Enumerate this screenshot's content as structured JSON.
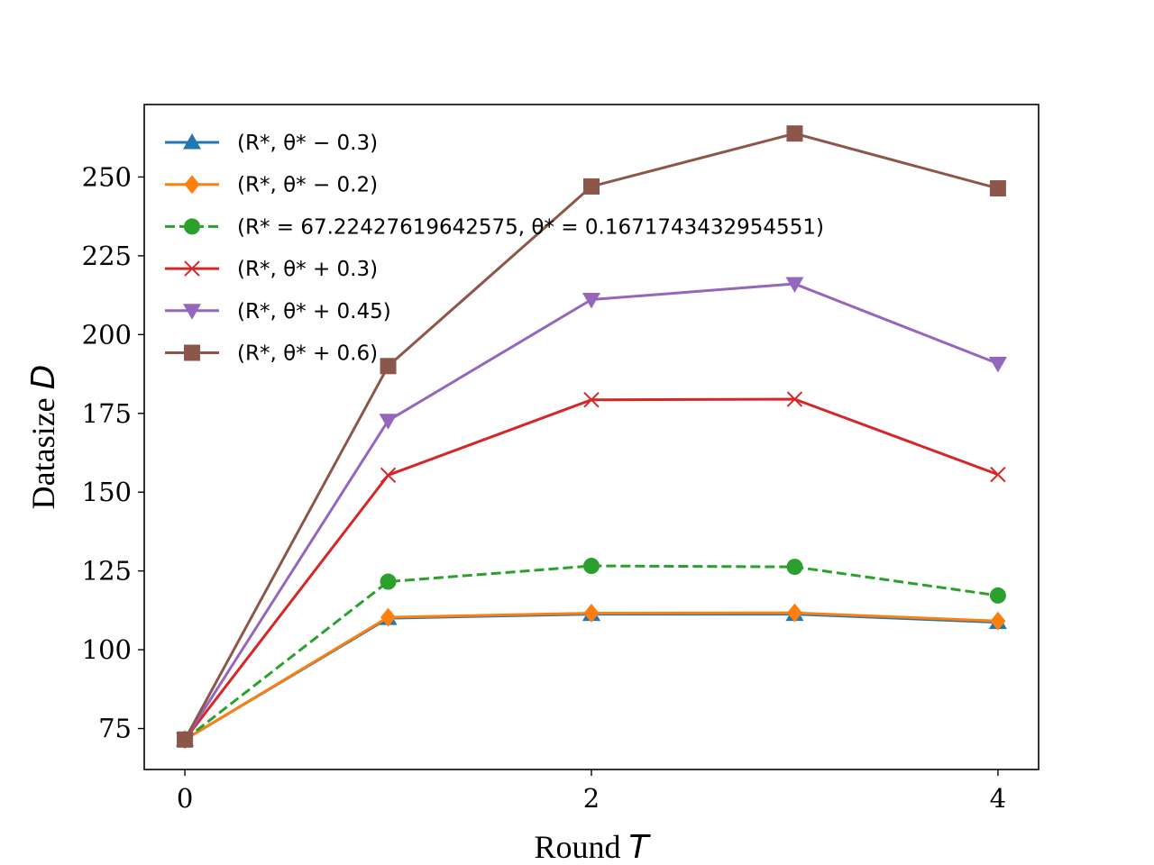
{
  "chart_data": {
    "type": "line",
    "xlabel": "Round",
    "xlabel_var": "T",
    "ylabel": "Datasize",
    "ylabel_var": "D",
    "xlim": [
      -0.2,
      4.2
    ],
    "ylim": [
      62,
      273
    ],
    "xticks": [
      "0",
      "2",
      "4"
    ],
    "yticks": [
      "75",
      "100",
      "125",
      "150",
      "175",
      "200",
      "225",
      "250"
    ],
    "grid": false,
    "legend_position": "top-left",
    "x": [
      0,
      1,
      2,
      3,
      4
    ],
    "series": [
      {
        "name": "(R*, θ* − 0.3)",
        "color": "#1f77b4",
        "marker": "triangle-up",
        "dash": false,
        "values": [
          71.5,
          110.0,
          111.3,
          111.3,
          108.7
        ]
      },
      {
        "name": "(R*, θ* − 0.2)",
        "color": "#ff7f0e",
        "marker": "diamond",
        "dash": false,
        "values": [
          71.5,
          110.3,
          111.6,
          111.7,
          109.1
        ]
      },
      {
        "name": "(R* = 67.22427619642575, θ* = 0.1671743432954551)",
        "color": "#2ca02c",
        "marker": "circle",
        "dash": true,
        "values": [
          71.5,
          121.6,
          126.6,
          126.3,
          117.2
        ]
      },
      {
        "name": "(R*, θ* + 0.3)",
        "color": "#d62728",
        "marker": "x",
        "dash": false,
        "values": [
          71.5,
          155.4,
          179.3,
          179.5,
          155.6
        ]
      },
      {
        "name": "(R*, θ* + 0.45)",
        "color": "#9467bd",
        "marker": "triangle-down",
        "dash": false,
        "values": [
          71.5,
          172.7,
          211.1,
          216.1,
          190.8
        ]
      },
      {
        "name": "(R*, θ* + 0.6)",
        "color": "#8c564b",
        "marker": "square",
        "dash": false,
        "values": [
          71.5,
          190.0,
          247.0,
          263.8,
          246.4
        ]
      }
    ]
  }
}
